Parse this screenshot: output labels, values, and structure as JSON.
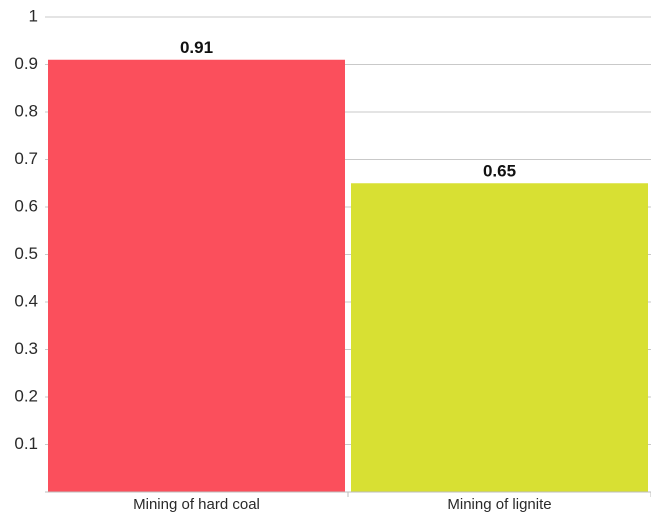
{
  "chart_data": {
    "type": "bar",
    "categories": [
      "Mining of hard coal",
      "Mining of lignite"
    ],
    "values": [
      0.91,
      0.65
    ],
    "value_labels": [
      "0.91",
      "0.65"
    ],
    "colors": [
      "#fb4f5c",
      "#d8e033"
    ],
    "ylim": [
      0,
      1
    ],
    "yticks": [
      0.1,
      0.2,
      0.3,
      0.4,
      0.5,
      0.6,
      0.7,
      0.8,
      0.9,
      1
    ],
    "ytick_labels": [
      "0.1",
      "0.2",
      "0.3",
      "0.4",
      "0.5",
      "0.6",
      "0.7",
      "0.8",
      "0.9",
      "1"
    ],
    "grid": true,
    "legend": "none",
    "title": "",
    "xlabel": "",
    "ylabel": ""
  }
}
